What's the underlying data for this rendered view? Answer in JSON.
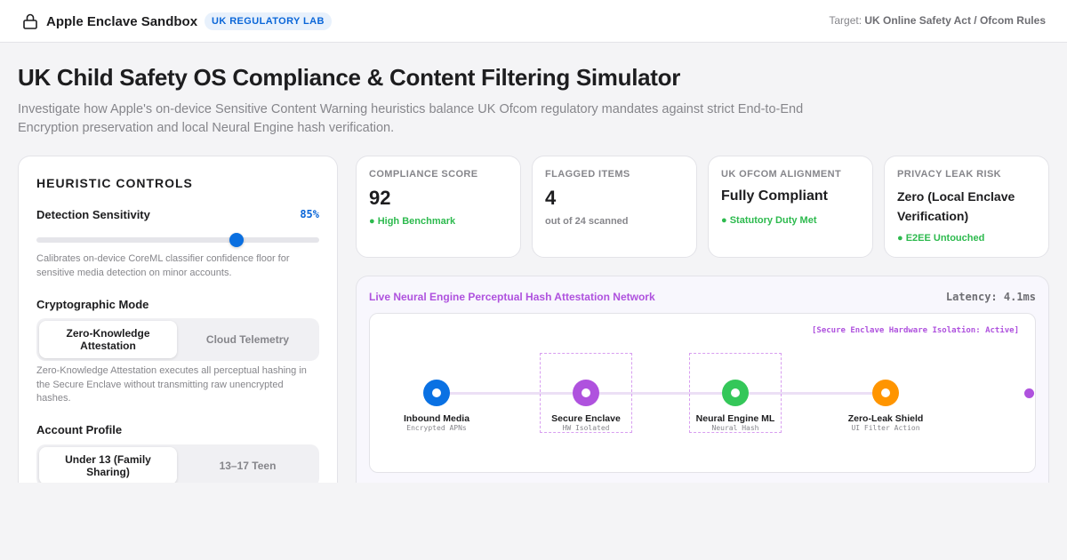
{
  "header": {
    "app_name": "Apple Enclave Sandbox",
    "badge": "UK REGULATORY LAB",
    "target_label": "Target:",
    "target_value": "UK Online Safety Act / Ofcom Rules",
    "lock_icon": "lock-icon"
  },
  "page": {
    "title": "UK Child Safety OS Compliance & Content Filtering Simulator",
    "description": "Investigate how Apple's on-device Sensitive Content Warning heuristics balance UK Ofcom regulatory mandates against strict End-to-End Encryption preservation and local Neural Engine hash verification."
  },
  "controls": {
    "title": "HEURISTIC CONTROLS",
    "sensitivity": {
      "label": "Detection Sensitivity",
      "value_text": "85%",
      "value": 0.85,
      "help": "Calibrates on-device CoreML classifier confidence floor for sensitive media detection on minor accounts."
    },
    "crypto": {
      "label": "Cryptographic Mode",
      "options": [
        "Zero-Knowledge Attestation",
        "Cloud Telemetry"
      ],
      "selected": "Zero-Knowledge Attestation",
      "help": "Zero-Knowledge Attestation executes all perceptual hashing in the Secure Enclave without transmitting raw unencrypted hashes."
    },
    "profile": {
      "label": "Account Profile",
      "options": [
        "Under 13 (Family Sharing)",
        "13–17 Teen"
      ],
      "selected": "Under 13 (Family Sharing)"
    }
  },
  "metrics": [
    {
      "label": "COMPLIANCE SCORE",
      "value": "92",
      "note": "● High Benchmark",
      "note_color": "#2dba4e"
    },
    {
      "label": "FLAGGED ITEMS",
      "value": "4",
      "note": "out of 24 scanned",
      "note_color": "#86868b"
    },
    {
      "label": "UK OFCOM ALIGNMENT",
      "value": "Fully Compliant",
      "note": "● Statutory Duty Met",
      "note_color": "#2dba4e"
    },
    {
      "label": "PRIVACY LEAK RISK",
      "value": "Zero (Local Enclave Verification)",
      "note": "● E2EE Untouched",
      "note_color": "#2dba4e"
    }
  ],
  "network": {
    "title": "Live Neural Engine Perceptual Hash Attestation Network",
    "latency": "Latency: 4.1ms",
    "isolation_label": "[Secure Enclave Hardware Isolation: Active]",
    "nodes": [
      {
        "name": "Inbound Media",
        "sub": "Encrypted APNs",
        "color": "#0a71e3"
      },
      {
        "name": "Secure Enclave",
        "sub": "HW Isolated",
        "color": "#af52de"
      },
      {
        "name": "Neural Engine ML",
        "sub": "Neural Hash",
        "color": "#34c759"
      },
      {
        "name": "Zero-Leak Shield",
        "sub": "UI Filter Action",
        "color": "#ff9500"
      }
    ]
  }
}
